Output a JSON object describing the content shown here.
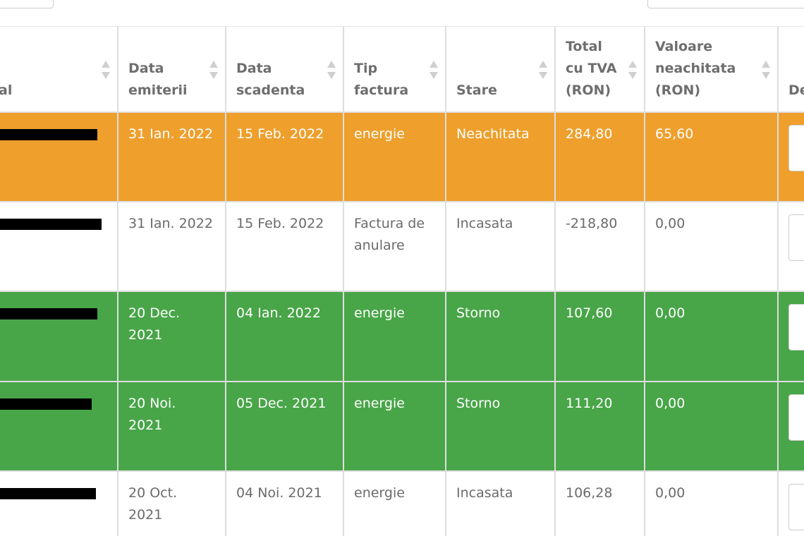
{
  "table": {
    "columns": [
      [
        "al"
      ],
      [
        "Data",
        "emiterii"
      ],
      [
        "Data",
        "scadenta"
      ],
      [
        "Tip",
        "factura"
      ],
      [
        "Stare"
      ],
      [
        "Total",
        "cu TVA",
        "(RON)"
      ],
      [
        "Valoare",
        "neachitata",
        "(RON)"
      ],
      [
        "De"
      ]
    ],
    "rows": [
      {
        "color": "#ee9f2c",
        "text_color": "#ffffff",
        "cells": [
          [
            "31 Ian. 2022"
          ],
          [
            "15 Feb. 2022"
          ],
          [
            "energie"
          ],
          [
            "Neachitata"
          ],
          [
            "284,80"
          ],
          [
            "65,60"
          ]
        ]
      },
      {
        "color": "#ffffff",
        "text_color": "#6b6b6b",
        "cells": [
          [
            "31 Ian. 2022"
          ],
          [
            "15 Feb. 2022"
          ],
          [
            "Factura de",
            "anulare"
          ],
          [
            "Incasata"
          ],
          [
            "-218,80"
          ],
          [
            "0,00"
          ]
        ]
      },
      {
        "color": "#48a548",
        "text_color": "#ffffff",
        "cells": [
          [
            "20 Dec.",
            "2021"
          ],
          [
            "04 Ian. 2022"
          ],
          [
            "energie"
          ],
          [
            "Storno"
          ],
          [
            "107,60"
          ],
          [
            "0,00"
          ]
        ]
      },
      {
        "color": "#48a548",
        "text_color": "#ffffff",
        "cells": [
          [
            "20 Noi.",
            "2021"
          ],
          [
            "05 Dec. 2021"
          ],
          [
            "energie"
          ],
          [
            "Storno"
          ],
          [
            "111,20"
          ],
          [
            "0,00"
          ]
        ]
      },
      {
        "color": "#ffffff",
        "text_color": "#6b6b6b",
        "cells": [
          [
            "20 Oct.",
            "2021"
          ],
          [
            "04 Noi. 2021"
          ],
          [
            "energie"
          ],
          [
            "Incasata"
          ],
          [
            "106,28"
          ],
          [
            "0,00"
          ]
        ]
      }
    ]
  }
}
